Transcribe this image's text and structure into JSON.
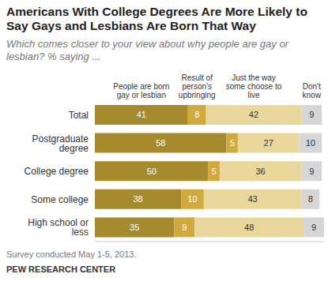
{
  "chart_data": {
    "type": "bar",
    "orientation": "horizontal",
    "stacked": true,
    "data_labels": true,
    "grid": false,
    "legend": "top",
    "tick_labels": "y",
    "title": "Americans With College Degrees Are More Likely to Say Gays and Lesbians Are Born That Way",
    "subtitle": "Which comes closer to your view about why people are gay or lesbian? % saying ...",
    "annotations": [
      "Survey conducted May 1-5, 2013.",
      "PEW RESEARCH CENTER"
    ],
    "categories": [
      "Total",
      "Postgraduate degree",
      "College degree",
      "Some college",
      "High school or less"
    ],
    "series": [
      {
        "name": "People are born gay or lesbian",
        "color": "#a58a2e",
        "values": [
          41,
          58,
          50,
          38,
          35
        ]
      },
      {
        "name": "Result of person's upbringing",
        "color": "#d2a93c",
        "values": [
          8,
          5,
          5,
          10,
          9
        ]
      },
      {
        "name": "Just the way some choose to live",
        "color": "#ead79b",
        "values": [
          42,
          27,
          36,
          43,
          48
        ]
      },
      {
        "name": "Don't know",
        "color": "#d6d6d6",
        "values": [
          9,
          10,
          9,
          8,
          9
        ]
      }
    ],
    "xlim": [
      0,
      101
    ],
    "xticks": []
  }
}
